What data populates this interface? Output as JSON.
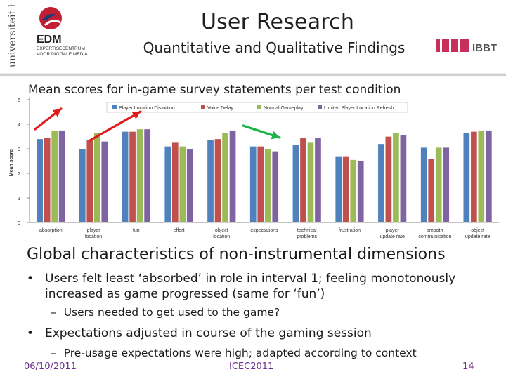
{
  "header": {
    "title": "User Research",
    "subtitle": "Quantitative and Qualitative Findings",
    "logos": {
      "uhasselt_text": "universiteit hasselt",
      "edm_text": "EDM",
      "edm_subtitle": "EXPERTISECENTRUM VOOR DIGITALE MEDIA",
      "ibbt_text": "IBBT"
    }
  },
  "chart_data": {
    "type": "bar",
    "title": "Mean scores for in-game survey statements per test condition",
    "ylabel": "Mean score",
    "xlabel": "",
    "ylim": [
      0,
      5
    ],
    "yticks": [
      0,
      1,
      2,
      3,
      4,
      5
    ],
    "grid": false,
    "legend_position": "top",
    "categories": [
      "absorption",
      "player location",
      "fun",
      "effort",
      "object location",
      "expectations",
      "technical problems",
      "frustration",
      "player update rate",
      "smooth communication",
      "object update rate"
    ],
    "series": [
      {
        "name": "Player Location Distortion",
        "color": "#4f81bd",
        "values": [
          3.4,
          3.0,
          3.7,
          3.1,
          3.35,
          3.1,
          3.15,
          2.7,
          3.2,
          3.05,
          3.65
        ]
      },
      {
        "name": "Voice Delay",
        "color": "#c0504d",
        "values": [
          3.45,
          3.35,
          3.7,
          3.25,
          3.4,
          3.1,
          3.45,
          2.7,
          3.5,
          2.6,
          3.7
        ]
      },
      {
        "name": "Normal Gameplay",
        "color": "#9bbb59",
        "values": [
          3.75,
          3.65,
          3.8,
          3.1,
          3.65,
          3.0,
          3.25,
          2.55,
          3.65,
          3.05,
          3.75
        ]
      },
      {
        "name": "Limited Player Location Refresh",
        "color": "#8064a2",
        "values": [
          3.75,
          3.3,
          3.8,
          3.0,
          3.75,
          2.9,
          3.45,
          2.5,
          3.55,
          3.05,
          3.75
        ]
      }
    ],
    "annotations": [
      {
        "type": "arrow",
        "color": "#e01b1b",
        "label": "red arrow over absorption"
      },
      {
        "type": "arrow",
        "color": "#e01b1b",
        "label": "red arrow over player location / fun"
      },
      {
        "type": "arrow",
        "color": "#19b34a",
        "label": "green arrow over expectations"
      }
    ]
  },
  "body": {
    "heading": "Global characteristics of non-instrumental dimensions",
    "bullets": [
      {
        "text": "Users felt least ‘absorbed’ in role in interval 1; feeling monotonously increased as game progressed (same for ‘fun’)",
        "sub": "Users needed to get used to the game?"
      },
      {
        "text": "Expectations adjusted in course of the gaming session",
        "sub": "Pre-usage expectations were high; adapted according to context"
      }
    ],
    "bullet_glyph": "•",
    "sub_glyph": "–"
  },
  "footer": {
    "date": "06/10/2011",
    "conference": "ICEC2011",
    "page": "14"
  }
}
